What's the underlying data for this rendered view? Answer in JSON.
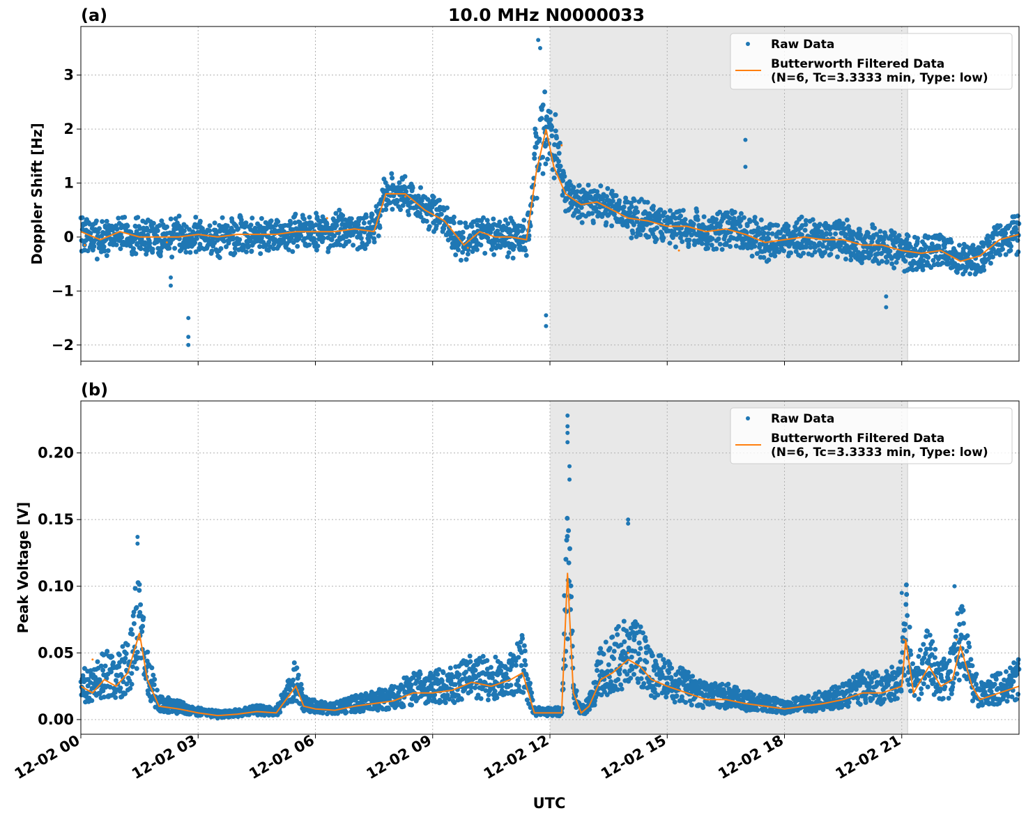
{
  "figure": {
    "title": "10.0 MHz N0000033",
    "xlabel": "UTC",
    "x_ticks": [
      "12-02 00",
      "12-02 03",
      "12-02 06",
      "12-02 09",
      "12-02 12",
      "12-02 15",
      "12-02 18",
      "12-02 21"
    ],
    "shaded_region_hours": [
      12.0,
      21.15
    ],
    "colors": {
      "raw": "#1f77b4",
      "filtered": "#ff7f0e",
      "shade": "#e8e8e8",
      "grid": "#b0b0b0"
    },
    "legend": {
      "raw": "Raw Data",
      "filtered_line1": "Butterworth Filtered Data",
      "filtered_line2": "(N=6, Tc=3.3333 min, Type: low)"
    }
  },
  "chart_data": [
    {
      "panel_label": "(a)",
      "type": "scatter",
      "ylabel": "Doppler Shift [Hz]",
      "xlim_hours": [
        0,
        24
      ],
      "ylim": [
        -2.3,
        3.9
      ],
      "y_ticks": [
        -2,
        -1,
        0,
        1,
        2,
        3
      ],
      "y_tick_labels": [
        "−2",
        "−1",
        "0",
        "1",
        "2",
        "3"
      ],
      "grid": true,
      "legend_position": "top-right",
      "series": [
        {
          "name": "Butterworth Filtered Data",
          "kind": "line",
          "x_hours": [
            0,
            0.5,
            1,
            1.5,
            2,
            2.5,
            3,
            3.5,
            4,
            4.5,
            5,
            5.5,
            6,
            6.5,
            7,
            7.5,
            7.8,
            8.3,
            8.8,
            9.3,
            9.8,
            10.2,
            10.6,
            11.0,
            11.4,
            11.65,
            11.9,
            12.1,
            12.4,
            12.8,
            13.2,
            13.6,
            14.0,
            14.5,
            15.0,
            15.5,
            16.0,
            16.5,
            17.0,
            17.5,
            18.0,
            18.5,
            19.0,
            19.5,
            20.0,
            20.5,
            21.0,
            21.5,
            22.0,
            22.5,
            23.0,
            23.5,
            24.0
          ],
          "y": [
            0.1,
            -0.05,
            0.1,
            0.0,
            0.0,
            0.0,
            0.05,
            0.0,
            0.05,
            0.05,
            0.05,
            0.1,
            0.1,
            0.1,
            0.15,
            0.1,
            0.8,
            0.8,
            0.5,
            0.3,
            -0.15,
            0.1,
            0.0,
            0.0,
            -0.05,
            1.2,
            2.0,
            1.3,
            0.8,
            0.6,
            0.65,
            0.5,
            0.35,
            0.3,
            0.2,
            0.2,
            0.1,
            0.15,
            0.05,
            -0.1,
            -0.05,
            0.0,
            -0.05,
            -0.05,
            -0.15,
            -0.15,
            -0.25,
            -0.3,
            -0.25,
            -0.45,
            -0.35,
            -0.05,
            0.05
          ],
          "markers": [
            {
              "x": 0.1,
              "y": -0.15
            },
            {
              "x": 2.2,
              "y": -0.1
            },
            {
              "x": 6.3,
              "y": 0.35
            },
            {
              "x": 8.3,
              "y": 0.75
            },
            {
              "x": 9.9,
              "y": -0.2
            },
            {
              "x": 12.3,
              "y": 1.7
            },
            {
              "x": 15.3,
              "y": -0.25
            }
          ]
        },
        {
          "name": "Raw Data",
          "kind": "scatter",
          "outliers": [
            {
              "x": 2.3,
              "y": -0.75
            },
            {
              "x": 2.3,
              "y": -0.9
            },
            {
              "x": 2.75,
              "y": -1.5
            },
            {
              "x": 2.75,
              "y": -1.85
            },
            {
              "x": 2.75,
              "y": -2.0
            },
            {
              "x": 11.7,
              "y": 3.65
            },
            {
              "x": 11.75,
              "y": 3.5
            },
            {
              "x": 11.9,
              "y": -1.45
            },
            {
              "x": 11.9,
              "y": -1.65
            },
            {
              "x": 17.0,
              "y": 1.8
            },
            {
              "x": 17.0,
              "y": 1.3
            },
            {
              "x": 20.6,
              "y": -1.1
            },
            {
              "x": 20.6,
              "y": -1.3
            }
          ]
        }
      ]
    },
    {
      "panel_label": "(b)",
      "type": "scatter",
      "ylabel": "Peak Voltage [V]",
      "xlim_hours": [
        0,
        24
      ],
      "ylim": [
        -0.011,
        0.239
      ],
      "y_ticks": [
        0.0,
        0.05,
        0.1,
        0.15,
        0.2
      ],
      "y_tick_labels": [
        "0.00",
        "0.05",
        "0.10",
        "0.15",
        "0.20"
      ],
      "grid": true,
      "legend_position": "top-right",
      "series": [
        {
          "name": "Butterworth Filtered Data",
          "kind": "line",
          "x_hours": [
            0,
            0.3,
            0.6,
            0.9,
            1.2,
            1.5,
            1.7,
            2.0,
            2.5,
            3.0,
            3.5,
            4.0,
            4.5,
            5.0,
            5.5,
            5.7,
            6.0,
            6.5,
            7.0,
            7.5,
            8.0,
            8.5,
            9.0,
            9.5,
            10.0,
            10.5,
            11.0,
            11.3,
            11.6,
            12.0,
            12.3,
            12.45,
            12.6,
            12.8,
            13.0,
            13.3,
            13.6,
            14.0,
            14.3,
            14.6,
            15.0,
            15.5,
            16.0,
            16.5,
            17.0,
            17.5,
            18.0,
            18.5,
            19.0,
            19.5,
            20.0,
            20.5,
            21.0,
            21.1,
            21.3,
            21.7,
            22.0,
            22.3,
            22.5,
            22.8,
            23.0,
            23.5,
            24.0
          ],
          "y": [
            0.025,
            0.02,
            0.03,
            0.025,
            0.035,
            0.065,
            0.03,
            0.01,
            0.008,
            0.005,
            0.003,
            0.004,
            0.006,
            0.005,
            0.025,
            0.01,
            0.008,
            0.007,
            0.01,
            0.012,
            0.014,
            0.02,
            0.02,
            0.022,
            0.028,
            0.025,
            0.03,
            0.035,
            0.005,
            0.005,
            0.005,
            0.11,
            0.02,
            0.005,
            0.01,
            0.03,
            0.035,
            0.045,
            0.04,
            0.03,
            0.025,
            0.02,
            0.015,
            0.015,
            0.012,
            0.01,
            0.008,
            0.01,
            0.012,
            0.015,
            0.02,
            0.02,
            0.025,
            0.06,
            0.02,
            0.04,
            0.025,
            0.03,
            0.055,
            0.025,
            0.015,
            0.02,
            0.025
          ],
          "markers": [
            {
              "x": 0.3,
              "y": 0.045
            },
            {
              "x": 1.5,
              "y": 0.06
            },
            {
              "x": 12.5,
              "y": 0.09
            },
            {
              "x": 14.0,
              "y": 0.05
            },
            {
              "x": 21.05,
              "y": 0.06
            },
            {
              "x": 22.4,
              "y": 0.06
            }
          ]
        },
        {
          "name": "Raw Data",
          "kind": "scatter",
          "outliers": [
            {
              "x": 12.45,
              "y": 0.228
            },
            {
              "x": 12.45,
              "y": 0.22
            },
            {
              "x": 12.45,
              "y": 0.215
            },
            {
              "x": 12.45,
              "y": 0.208
            },
            {
              "x": 12.5,
              "y": 0.19
            },
            {
              "x": 12.5,
              "y": 0.18
            },
            {
              "x": 14.0,
              "y": 0.15
            },
            {
              "x": 14.0,
              "y": 0.147
            },
            {
              "x": 1.45,
              "y": 0.137
            },
            {
              "x": 1.45,
              "y": 0.132
            },
            {
              "x": 22.35,
              "y": 0.1
            },
            {
              "x": 21.0,
              "y": 0.095
            }
          ]
        }
      ]
    }
  ]
}
